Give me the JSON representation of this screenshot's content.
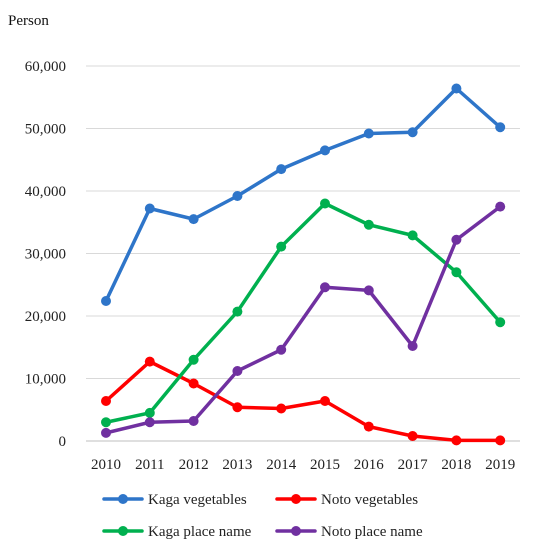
{
  "chart_data": {
    "type": "line",
    "unit_label": "Person",
    "x": [
      "2010",
      "2011",
      "2012",
      "2013",
      "2014",
      "2015",
      "2016",
      "2017",
      "2018",
      "2019"
    ],
    "ylim": [
      0,
      60000
    ],
    "yticks": [
      0,
      10000,
      20000,
      30000,
      40000,
      50000,
      60000
    ],
    "ytick_labels": [
      "0",
      "10,000",
      "20,000",
      "30,000",
      "40,000",
      "50,000",
      "60,000"
    ],
    "grid": "horizontal",
    "legend_position": "bottom",
    "series": [
      {
        "name": "Kaga vegetables",
        "color": "#2e75c9",
        "values": [
          22400,
          37200,
          35500,
          39200,
          43500,
          46500,
          49200,
          49400,
          56400,
          50200
        ]
      },
      {
        "name": "Noto vegetables",
        "color": "#ff0000",
        "values": [
          6400,
          12700,
          9200,
          5400,
          5200,
          6400,
          2300,
          800,
          100,
          100
        ]
      },
      {
        "name": "Kaga place name",
        "color": "#00b04f",
        "values": [
          3000,
          4500,
          13000,
          20700,
          31100,
          38000,
          34600,
          32900,
          27000,
          19000
        ]
      },
      {
        "name": "Noto place name",
        "color": "#7030a0",
        "values": [
          1300,
          3000,
          3200,
          11200,
          14600,
          24600,
          24100,
          15200,
          32200,
          37500
        ]
      }
    ]
  }
}
